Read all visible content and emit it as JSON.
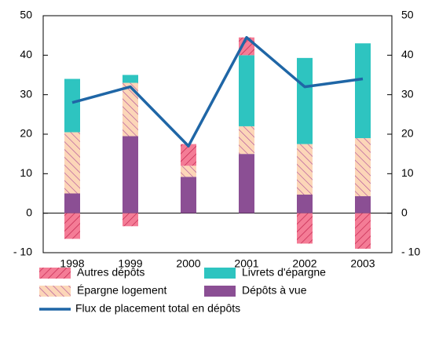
{
  "chart_data": {
    "type": "bar",
    "categories": [
      "1998",
      "1999",
      "2000",
      "2001",
      "2002",
      "2003"
    ],
    "ylim": [
      -10,
      50
    ],
    "yticks": [
      {
        "value": -10,
        "label": "- 10"
      },
      0,
      10,
      20,
      30,
      40,
      50
    ],
    "series": [
      {
        "name": "Dépôts à vue",
        "color": "#8b4f94",
        "values": [
          5,
          19.5,
          9.2,
          15,
          4.7,
          4.3
        ]
      },
      {
        "name": "Épargne logement",
        "color": "#fcd6b8",
        "hatch": true,
        "hatch_color": "#b0509a",
        "values": [
          15.5,
          13.5,
          2.8,
          7,
          12.8,
          14.7
        ]
      },
      {
        "name": "Livrets d'épargne",
        "color": "#2ec4c0",
        "values": [
          13.5,
          2,
          0,
          18,
          21.8,
          24
        ]
      },
      {
        "name": "Autres dépôts",
        "color": "#f47c96",
        "hatch": true,
        "hatch_color": "#c0204a",
        "values": [
          -6.5,
          -3.3,
          5.5,
          4.5,
          -7.7,
          -9
        ]
      },
      {
        "name": "Flux de placement total en dépôts",
        "type": "line",
        "color": "#1f66a6",
        "values": [
          28,
          32,
          17,
          44.5,
          32,
          34
        ]
      }
    ]
  }
}
